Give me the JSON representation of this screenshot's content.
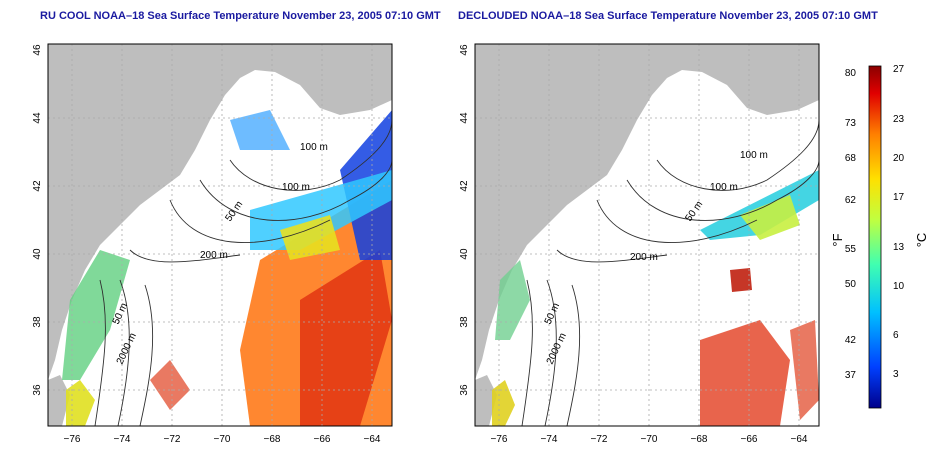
{
  "left_panel": {
    "title": "RU COOL NOAA–18 Sea Surface Temperature November 23, 2005 07:10 GMT",
    "contour_labels": [
      "100 m",
      "100 m",
      "50 m",
      "200 m",
      "50 m",
      "2000 m"
    ]
  },
  "right_panel": {
    "title": "DECLOUDED NOAA–18 Sea Surface Temperature November 23, 2005 07:10 GMT",
    "contour_labels": [
      "100 m",
      "100 m",
      "50 m",
      "200 m",
      "50 m",
      "2000 m"
    ]
  },
  "axes": {
    "lon_ticks": [
      "−76",
      "−74",
      "−72",
      "−70",
      "−68",
      "−66",
      "−64"
    ],
    "lat_ticks": [
      "36",
      "38",
      "40",
      "42",
      "44",
      "46"
    ]
  },
  "colorbar": {
    "unit_left": "°F",
    "unit_right": "°C",
    "f_ticks": [
      "80",
      "73",
      "68",
      "62",
      "55",
      "50",
      "42",
      "37"
    ],
    "c_ticks": [
      "27",
      "23",
      "20",
      "17",
      "13",
      "10",
      "6",
      "3"
    ],
    "colors": [
      "#00008b",
      "#0040ff",
      "#00c0ff",
      "#40ffb0",
      "#c0ff40",
      "#ffe000",
      "#ff8000",
      "#e00000",
      "#8b0000"
    ]
  }
}
